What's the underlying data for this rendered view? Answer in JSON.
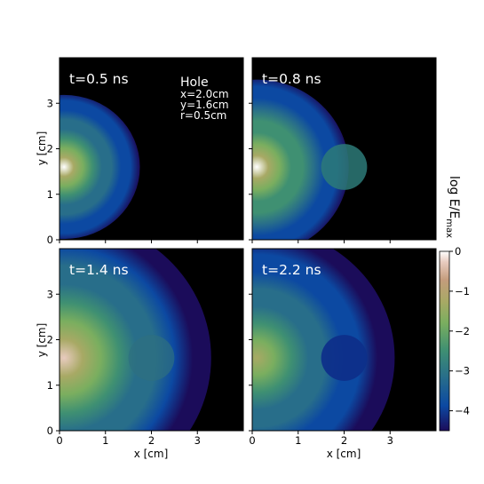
{
  "chart_data": {
    "type": "heatmap",
    "layout": "2x2",
    "colormap": "gist_earth-like (black-blue-green-tan-white)",
    "xlabel": "x [cm]",
    "ylabel": "y [cm]",
    "xlim": [
      0,
      4
    ],
    "ylim": [
      0,
      4
    ],
    "xticks": [
      "0",
      "1",
      "2",
      "3"
    ],
    "yticks": [
      "0",
      "1",
      "2",
      "3"
    ],
    "colorbar": {
      "label": "log E/E",
      "label_sub": "max",
      "range": [
        -4.5,
        0
      ],
      "ticks": [
        "0",
        "−1",
        "−2",
        "−3",
        "−4"
      ]
    },
    "source": {
      "x": 0.1,
      "y": 1.6
    },
    "hole": {
      "title": "Hole",
      "params": [
        "x=2.0cm",
        "y=1.6cm",
        "r=0.5cm"
      ],
      "x": 2.0,
      "y": 1.6,
      "r": 0.5
    },
    "panels": [
      {
        "title": "t=0.5 ns",
        "time_ns": 0.5,
        "front_radius_cm": 1.65,
        "peak_log": -0.1,
        "hole_state": "front touching hole edge"
      },
      {
        "title": "t=0.8 ns",
        "time_ns": 0.8,
        "front_radius_cm": 2.0,
        "peak_log": 0.0,
        "hole_state": "wave passes around hole"
      },
      {
        "title": "t=1.4 ns",
        "time_ns": 1.4,
        "front_radius_cm": 3.2,
        "peak_log": -0.6,
        "hole_state": "hole filled, shadow visible"
      },
      {
        "title": "t=2.2 ns",
        "time_ns": 2.2,
        "front_radius_cm": 3.0,
        "peak_log": -1.5,
        "hole_state": "dark hole region"
      }
    ]
  }
}
